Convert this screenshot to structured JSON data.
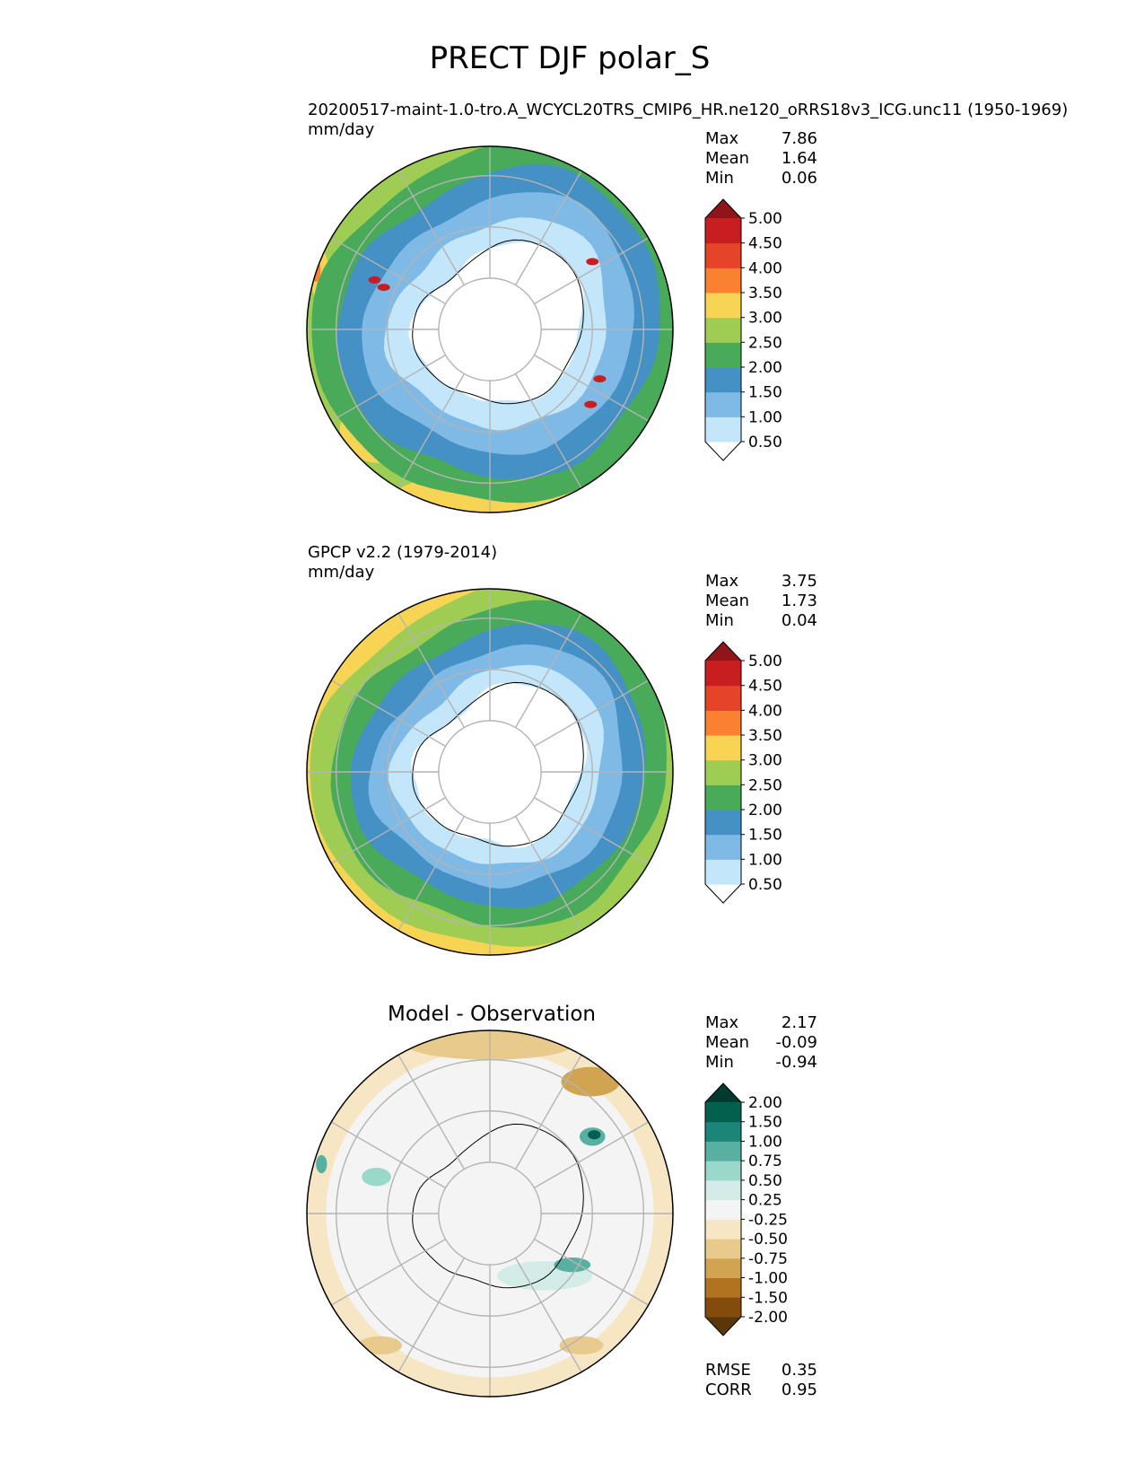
{
  "figure": {
    "title": "PRECT DJF polar_S"
  },
  "colors": {
    "precip": [
      "#ffffff",
      "#c3e6fa",
      "#7fbae6",
      "#4590c4",
      "#49aa5a",
      "#9fcd53",
      "#f8d454",
      "#fa8032",
      "#e64428",
      "#c81d21",
      "#8e1519"
    ],
    "diff": [
      "#5a3709",
      "#844c0c",
      "#b1731f",
      "#d1a451",
      "#e8ca8c",
      "#f6e6c4",
      "#f4f4f4",
      "#d4ece7",
      "#9ad8cc",
      "#58b0a3",
      "#1b8578",
      "#03604e",
      "#013a2e"
    ],
    "grid": "#b4b4b4"
  },
  "panels": [
    {
      "subtitle": "20200517-maint-1.0-tro.A_WCYCL20TRS_CMIP6_HR.ne120_oRRS18v3_ICG.unc11 (1950-1969)",
      "units": "mm/day",
      "stats": [
        {
          "label": "Max",
          "value": "7.86"
        },
        {
          "label": "Mean",
          "value": "1.64"
        },
        {
          "label": "Min",
          "value": "0.06"
        }
      ],
      "colorbar_labels": [
        "0.50",
        "1.00",
        "1.50",
        "2.00",
        "2.50",
        "3.00",
        "3.50",
        "4.00",
        "4.50",
        "5.00"
      ]
    },
    {
      "subtitle": "GPCP v2.2 (1979-2014)",
      "units": "mm/day",
      "stats": [
        {
          "label": "Max",
          "value": "3.75"
        },
        {
          "label": "Mean",
          "value": "1.73"
        },
        {
          "label": "Min",
          "value": "0.04"
        }
      ],
      "colorbar_labels": [
        "0.50",
        "1.00",
        "1.50",
        "2.00",
        "2.50",
        "3.00",
        "3.50",
        "4.00",
        "4.50",
        "5.00"
      ]
    },
    {
      "title": "Model - Observation",
      "stats": [
        {
          "label": "Max",
          "value": "2.17"
        },
        {
          "label": "Mean",
          "value": "-0.09"
        },
        {
          "label": "Min",
          "value": "-0.94"
        }
      ],
      "colorbar_labels": [
        "-2.00",
        "-1.50",
        "-1.00",
        "-0.75",
        "-0.50",
        "-0.25",
        "0.25",
        "0.50",
        "0.75",
        "1.00",
        "1.50",
        "2.00"
      ],
      "metrics": [
        {
          "label": "RMSE",
          "value": "0.35"
        },
        {
          "label": "CORR",
          "value": "0.95"
        }
      ]
    }
  ],
  "chart_data": [
    {
      "type": "heatmap",
      "projection": "south-polar-stereographic",
      "variable": "PRECT",
      "season": "DJF",
      "levels": [
        0.5,
        1.0,
        1.5,
        2.0,
        2.5,
        3.0,
        3.5,
        4.0,
        4.5,
        5.0
      ],
      "extend": "both",
      "stats": {
        "max": 7.86,
        "mean": 1.64,
        "min": 0.06
      }
    },
    {
      "type": "heatmap",
      "projection": "south-polar-stereographic",
      "variable": "PRECT",
      "season": "DJF",
      "levels": [
        0.5,
        1.0,
        1.5,
        2.0,
        2.5,
        3.0,
        3.5,
        4.0,
        4.5,
        5.0
      ],
      "extend": "both",
      "stats": {
        "max": 3.75,
        "mean": 1.73,
        "min": 0.04
      }
    },
    {
      "type": "heatmap",
      "projection": "south-polar-stereographic",
      "variable": "PRECT difference",
      "levels": [
        -2.0,
        -1.5,
        -1.0,
        -0.75,
        -0.5,
        -0.25,
        0.25,
        0.5,
        0.75,
        1.0,
        1.5,
        2.0
      ],
      "extend": "both",
      "stats": {
        "max": 2.17,
        "mean": -0.09,
        "min": -0.94,
        "rmse": 0.35,
        "corr": 0.95
      }
    }
  ]
}
